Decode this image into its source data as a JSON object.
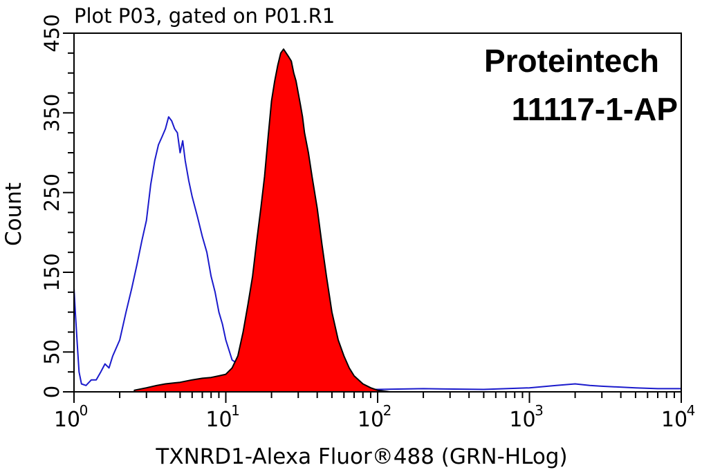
{
  "chart_data": {
    "type": "area",
    "title": "Plot P03, gated on P01.R1",
    "xlabel": "TXNRD1-Alexa Fluor®488 (GRN-HLog)",
    "ylabel": "Count",
    "xscale": "log",
    "xlim": [
      1,
      10000
    ],
    "ylim": [
      0,
      450
    ],
    "yticks": [
      0,
      50,
      150,
      250,
      350,
      450
    ],
    "yticks_minor": [
      0,
      25,
      50,
      75,
      100,
      125,
      150,
      175,
      200,
      225,
      250,
      275,
      300,
      325,
      350,
      375,
      400,
      425,
      450
    ],
    "xticks": [
      {
        "base": "10",
        "exp": "0"
      },
      {
        "base": "10",
        "exp": "1"
      },
      {
        "base": "10",
        "exp": "2"
      },
      {
        "base": "10",
        "exp": "3"
      },
      {
        "base": "10",
        "exp": "4"
      }
    ],
    "annotations": [
      "Proteintech",
      "11117-1-AP"
    ],
    "grid": false,
    "series": [
      {
        "role": "control",
        "color": "#1a1acc",
        "style": "line",
        "points": [
          [
            1.0,
            130
          ],
          [
            1.02,
            100
          ],
          [
            1.05,
            60
          ],
          [
            1.08,
            25
          ],
          [
            1.12,
            10
          ],
          [
            1.2,
            8
          ],
          [
            1.3,
            15
          ],
          [
            1.4,
            15
          ],
          [
            1.5,
            25
          ],
          [
            1.6,
            35
          ],
          [
            1.7,
            30
          ],
          [
            1.8,
            45
          ],
          [
            2.0,
            65
          ],
          [
            2.2,
            100
          ],
          [
            2.4,
            130
          ],
          [
            2.6,
            160
          ],
          [
            2.8,
            190
          ],
          [
            3.0,
            215
          ],
          [
            3.2,
            260
          ],
          [
            3.4,
            290
          ],
          [
            3.6,
            310
          ],
          [
            3.8,
            320
          ],
          [
            4.0,
            330
          ],
          [
            4.2,
            345
          ],
          [
            4.4,
            340
          ],
          [
            4.6,
            330
          ],
          [
            4.8,
            325
          ],
          [
            5.0,
            300
          ],
          [
            5.2,
            315
          ],
          [
            5.4,
            290
          ],
          [
            5.7,
            265
          ],
          [
            6.0,
            245
          ],
          [
            6.5,
            220
          ],
          [
            7.0,
            195
          ],
          [
            7.5,
            175
          ],
          [
            8.0,
            145
          ],
          [
            8.5,
            125
          ],
          [
            9.0,
            100
          ],
          [
            9.5,
            85
          ],
          [
            10.0,
            65
          ],
          [
            11.0,
            40
          ],
          [
            12.0,
            35
          ],
          [
            13.0,
            30
          ],
          [
            14.0,
            15
          ],
          [
            16.0,
            8
          ],
          [
            20.0,
            5
          ],
          [
            50.0,
            3
          ],
          [
            100.0,
            3
          ],
          [
            200.0,
            4
          ],
          [
            500.0,
            3
          ],
          [
            1000.0,
            5
          ],
          [
            1500.0,
            8
          ],
          [
            2000.0,
            10
          ],
          [
            2500.0,
            8
          ],
          [
            3000.0,
            7
          ],
          [
            5000.0,
            5
          ],
          [
            7000.0,
            4
          ],
          [
            10000.0,
            4
          ]
        ]
      },
      {
        "role": "sample",
        "color": "#ff0000",
        "stroke": "#000000",
        "style": "filled",
        "points": [
          [
            2.5,
            2
          ],
          [
            3.0,
            5
          ],
          [
            3.5,
            8
          ],
          [
            4.0,
            10
          ],
          [
            5.0,
            12
          ],
          [
            6.0,
            15
          ],
          [
            7.0,
            17
          ],
          [
            8.0,
            18
          ],
          [
            9.0,
            20
          ],
          [
            10.0,
            22
          ],
          [
            11.0,
            30
          ],
          [
            12.0,
            45
          ],
          [
            13.0,
            75
          ],
          [
            14.0,
            110
          ],
          [
            15.0,
            145
          ],
          [
            16.0,
            190
          ],
          [
            17.0,
            230
          ],
          [
            18.0,
            270
          ],
          [
            19.0,
            320
          ],
          [
            20.0,
            365
          ],
          [
            21.0,
            390
          ],
          [
            22.0,
            410
          ],
          [
            23.0,
            425
          ],
          [
            24.0,
            430
          ],
          [
            25.0,
            425
          ],
          [
            26.0,
            420
          ],
          [
            27.0,
            415
          ],
          [
            28.0,
            400
          ],
          [
            29.0,
            390
          ],
          [
            30.0,
            375
          ],
          [
            31.0,
            360
          ],
          [
            32.0,
            345
          ],
          [
            33.0,
            325
          ],
          [
            35.0,
            300
          ],
          [
            37.0,
            270
          ],
          [
            40.0,
            230
          ],
          [
            43.0,
            185
          ],
          [
            46.0,
            145
          ],
          [
            50.0,
            100
          ],
          [
            55.0,
            65
          ],
          [
            60.0,
            45
          ],
          [
            65.0,
            30
          ],
          [
            70.0,
            20
          ],
          [
            80.0,
            10
          ],
          [
            90.0,
            5
          ],
          [
            100.0,
            2
          ],
          [
            120.0,
            0
          ]
        ]
      }
    ]
  }
}
